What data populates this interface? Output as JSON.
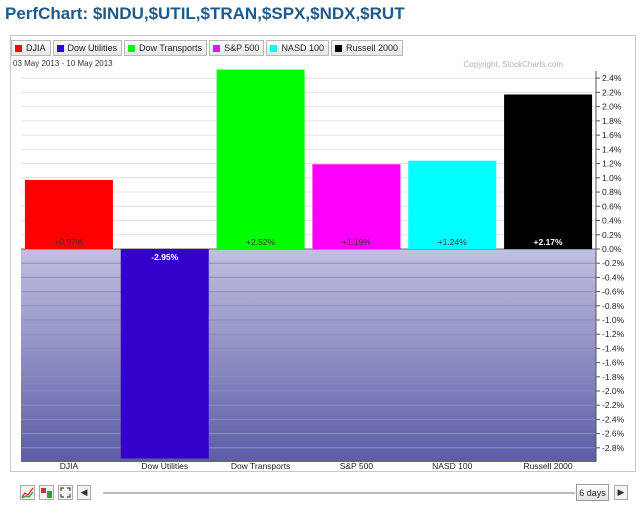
{
  "title": "PerfChart: $INDU,$UTIL,$TRAN,$SPX,$NDX,$RUT",
  "date_range": "03 May 2013 - 10 May 2013",
  "copyright": "Copyright, StockCharts.com",
  "period_button": "6 days",
  "colors": {
    "plot_positive_bg": "#ffffff",
    "plot_negative_top": "#c0c0e0",
    "plot_negative_bottom": "#5c5ca8",
    "title": "#1f5a8a"
  },
  "icons": [
    "line-chart-icon",
    "bar-chart-icon",
    "fullscreen-icon",
    "scroll-left-icon",
    "scroll-right-icon"
  ],
  "chart_data": {
    "type": "bar",
    "categories": [
      "DJIA",
      "Dow Utilities",
      "Dow Transports",
      "S&P 500",
      "NASD 100",
      "Russell 2000"
    ],
    "values": [
      0.97,
      -2.95,
      2.52,
      1.19,
      1.24,
      2.17
    ],
    "data_labels": [
      "+0.97%",
      "-2.95%",
      "+2.52%",
      "+1.19%",
      "+1.24%",
      "+2.17%"
    ],
    "colors": [
      "#ff0000",
      "#3300cc",
      "#00ff00",
      "#ff00ff",
      "#00ffff",
      "#000000"
    ],
    "ylim": [
      -3.0,
      2.5
    ],
    "yticks": [
      "2.4%",
      "2.2%",
      "2.0%",
      "1.8%",
      "1.6%",
      "1.4%",
      "1.2%",
      "1.0%",
      "0.8%",
      "0.6%",
      "0.4%",
      "0.2%",
      "0.0%",
      "-0.2%",
      "-0.4%",
      "-0.6%",
      "-0.8%",
      "-1.0%",
      "-1.2%",
      "-1.4%",
      "-1.6%",
      "-1.8%",
      "-2.0%",
      "-2.2%",
      "-2.4%",
      "-2.6%",
      "-2.8%"
    ],
    "ytick_values": [
      2.4,
      2.2,
      2.0,
      1.8,
      1.6,
      1.4,
      1.2,
      1.0,
      0.8,
      0.6,
      0.4,
      0.2,
      0.0,
      -0.2,
      -0.4,
      -0.6,
      -0.8,
      -1.0,
      -1.2,
      -1.4,
      -1.6,
      -1.8,
      -2.0,
      -2.2,
      -2.4,
      -2.6,
      -2.8
    ],
    "legend_position": "top-left",
    "grid": true,
    "y_axis_side": "right"
  }
}
